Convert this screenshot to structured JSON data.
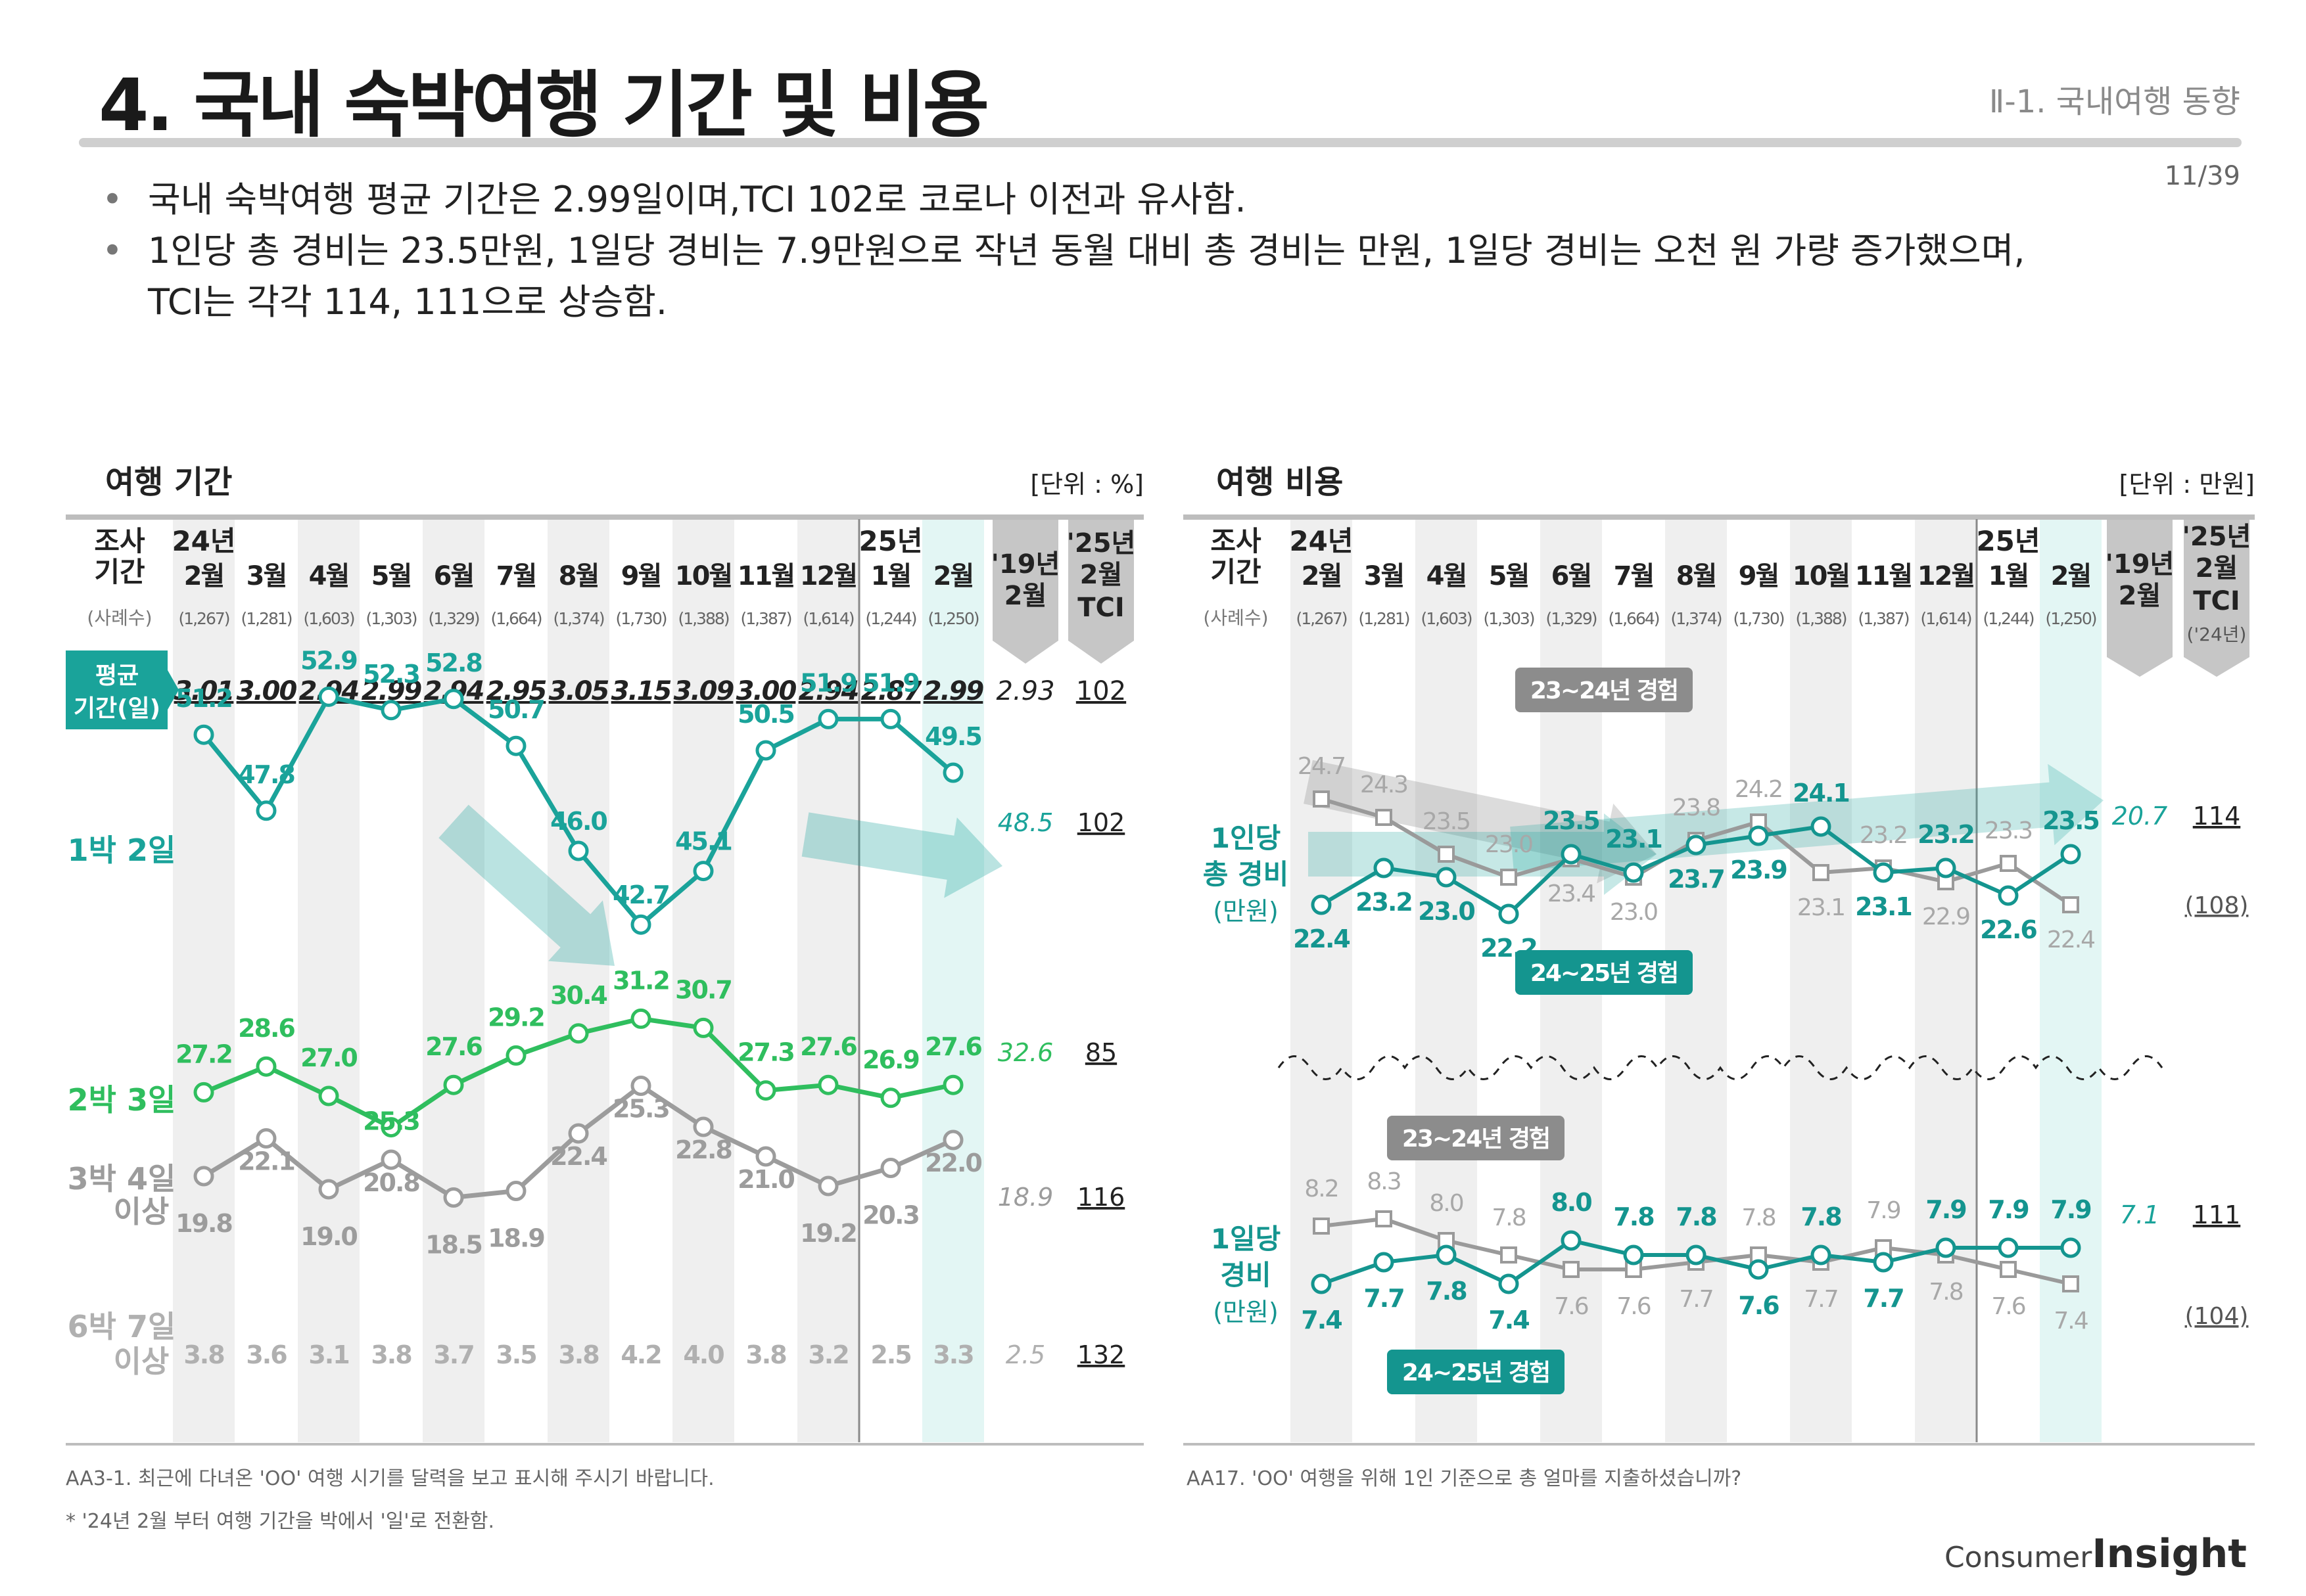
{
  "header": {
    "title": "4. 국내 숙박여행 기간 및 비용",
    "section": "Ⅱ-1. 국내여행 동향",
    "page": "11/39"
  },
  "bullets": [
    "국내 숙박여행 평균 기간은 2.99일이며,TCI 102로 코로나 이전과 유사함.",
    "1인당 총 경비는 23.5만원, 1일당 경비는 7.9만원으로 작년 동월 대비 총 경비는 만원, 1일당 경비는 오천 원 가량 증가했으며,",
    "TCI는 각각 114, 111으로 상승함."
  ],
  "colors": {
    "teal": "#1aa39a",
    "green": "#2fbe5e",
    "gray": "#9c9c9c",
    "lightgray": "#b0b0b0",
    "stripe": "#efefef",
    "highlight": "#e3f6f4",
    "tciCol": "#c6c6c6",
    "darkTeal": "#14958f"
  },
  "common": {
    "survey_label_1": "조사",
    "survey_label_2": "기간",
    "sample_label": "(사례수)",
    "year24": "24년",
    "year25": "25년",
    "months": [
      "2월",
      "3월",
      "4월",
      "5월",
      "6월",
      "7월",
      "8월",
      "9월",
      "10월",
      "11월",
      "12월",
      "1월",
      "2월"
    ],
    "samples": [
      "(1,267)",
      "(1,281)",
      "(1,603)",
      "(1,303)",
      "(1,329)",
      "(1,664)",
      "(1,374)",
      "(1,730)",
      "(1,388)",
      "(1,387)",
      "(1,614)",
      "(1,244)",
      "(1,250)"
    ],
    "col19_1": "'19년",
    "col19_2": "2월",
    "tci_1": "'25년",
    "tci_2": "2월",
    "tci_3": "TCI",
    "tci_4": "('24년)"
  },
  "left_panel": {
    "title": "여행 기간",
    "unit": "[단위 : %]",
    "avg_label_1": "평균",
    "avg_label_2": "기간(일)",
    "question": "AA3-1. 최근에 다녀온 'OO' 여행 시기를 달력을 보고 표시해 주시기 바랍니다.",
    "note": "* '24년 2월 부터 여행 기간을 박에서 '일'로 전환함."
  },
  "right_panel": {
    "title": "여행 비용",
    "unit": "[단위 : 만원]",
    "exp_23_24": "23~24년 경험",
    "exp_24_25": "24~25년 경험",
    "question": "AA17. 'OO' 여행을 위해 1인 기준으로 총 얼마를 지출하셨습니까?"
  },
  "logo": {
    "prefix": "Consumer",
    "main": "Insight"
  },
  "chart_data": [
    {
      "type": "line",
      "title": "여행 기간",
      "categories": [
        "24년 2월",
        "3월",
        "4월",
        "5월",
        "6월",
        "7월",
        "8월",
        "9월",
        "10월",
        "11월",
        "12월",
        "25년 1월",
        "2월"
      ],
      "average_days": {
        "name": "평균 기간(일)",
        "values": [
          "3.01",
          "3.00",
          "2.94",
          "2.99",
          "2.94",
          "2.95",
          "3.05",
          "3.15",
          "3.09",
          "3.00",
          "2.94",
          "2.87",
          "2.99"
        ],
        "y2019": "2.93",
        "tci": "102"
      },
      "series": [
        {
          "name": "1박 2일",
          "values": [
            51.2,
            47.8,
            52.9,
            52.3,
            52.8,
            50.7,
            46.0,
            42.7,
            45.1,
            50.5,
            51.9,
            51.9,
            49.5
          ],
          "y2019": "48.5",
          "tci": "102"
        },
        {
          "name": "2박 3일",
          "values": [
            27.2,
            28.6,
            27.0,
            25.3,
            27.6,
            29.2,
            30.4,
            31.2,
            30.7,
            27.3,
            27.6,
            26.9,
            27.6
          ],
          "y2019": "32.6",
          "tci": "85"
        },
        {
          "name": "3박 4일 이상",
          "values": [
            19.8,
            22.1,
            19.0,
            20.8,
            18.5,
            18.9,
            22.4,
            25.3,
            22.8,
            21.0,
            19.2,
            20.3,
            22.0
          ],
          "y2019": "18.9",
          "tci": "116"
        },
        {
          "name": "6박 7일 이상",
          "values": [
            3.8,
            3.6,
            3.1,
            3.8,
            3.7,
            3.5,
            3.8,
            4.2,
            4.0,
            3.8,
            3.2,
            2.5,
            3.3
          ],
          "y2019": "2.5",
          "tci": "132"
        }
      ]
    },
    {
      "type": "line",
      "title": "여행 비용",
      "categories": [
        "24년 2월",
        "3월",
        "4월",
        "5월",
        "6월",
        "7월",
        "8월",
        "9월",
        "10월",
        "11월",
        "12월",
        "25년 1월",
        "2월"
      ],
      "groups": [
        {
          "name": "1인당 총 경비 (만원)",
          "series": [
            {
              "name": "23~24년 경험",
              "values": [
                24.7,
                24.3,
                23.5,
                23.0,
                23.4,
                23.0,
                23.8,
                24.2,
                23.1,
                23.2,
                22.9,
                23.3,
                22.4
              ]
            },
            {
              "name": "24~25년 경험",
              "values": [
                22.4,
                23.2,
                23.0,
                22.2,
                23.5,
                23.1,
                23.7,
                23.9,
                24.1,
                23.1,
                23.2,
                22.6,
                23.5
              ]
            }
          ],
          "y2019": "20.7",
          "tci": "114",
          "tci_prev": "(108)"
        },
        {
          "name": "1일당 경비 (만원)",
          "series": [
            {
              "name": "23~24년 경험",
              "values": [
                8.2,
                8.3,
                8.0,
                7.8,
                7.6,
                7.6,
                7.7,
                7.8,
                7.7,
                7.9,
                7.8,
                7.6,
                7.4
              ]
            },
            {
              "name": "24~25년 경험",
              "values": [
                7.4,
                7.7,
                7.8,
                7.4,
                8.0,
                7.8,
                7.8,
                7.6,
                7.8,
                7.7,
                7.9,
                7.9,
                7.9
              ]
            }
          ],
          "y2019": "7.1",
          "tci": "111",
          "tci_prev": "(104)"
        }
      ]
    }
  ]
}
